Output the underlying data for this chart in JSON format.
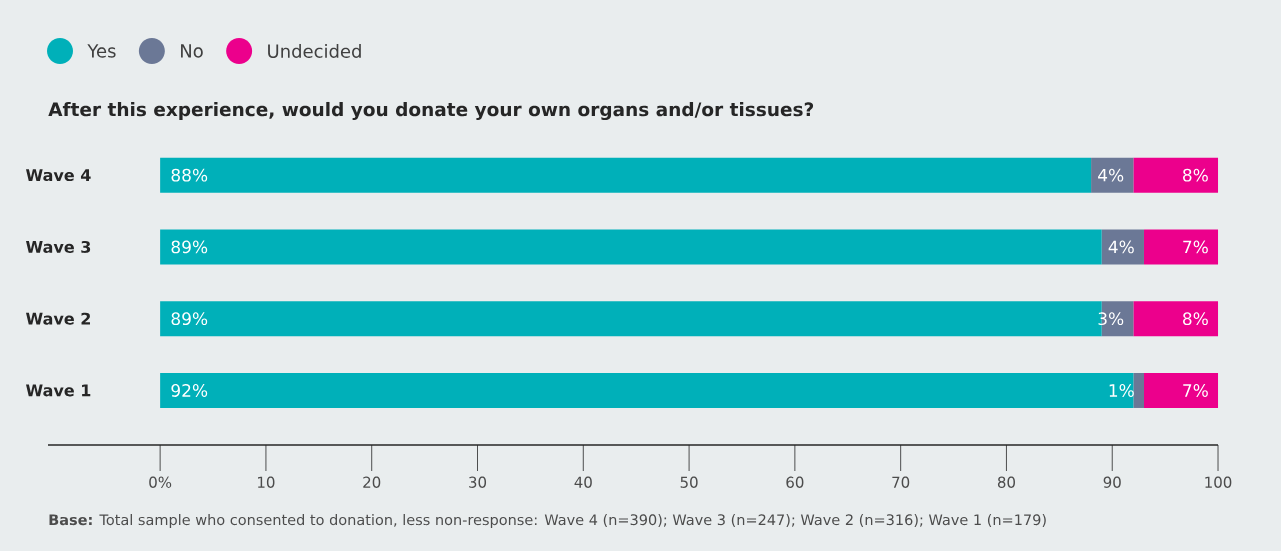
{
  "chart_data": {
    "type": "bar",
    "orientation": "horizontal",
    "stacked": true,
    "title": "After this experience, would you donate your own organs and/or tissues?",
    "categories": [
      "Wave 4",
      "Wave 3",
      "Wave 2",
      "Wave 1"
    ],
    "series": [
      {
        "name": "Yes",
        "color": "#00b0b9",
        "values": [
          88,
          89,
          89,
          92
        ],
        "value_labels": [
          "88%",
          "89%",
          "89%",
          "92%"
        ]
      },
      {
        "name": "No",
        "color": "#6b7896",
        "values": [
          4,
          4,
          3,
          1
        ],
        "value_labels": [
          "4%",
          "4%",
          "3%",
          "1%"
        ]
      },
      {
        "name": "Undecided",
        "color": "#ec008c",
        "values": [
          8,
          7,
          8,
          7
        ],
        "value_labels": [
          "8%",
          "7%",
          "8%",
          "7%"
        ]
      }
    ],
    "xlim": [
      -10.6,
      100
    ],
    "xticks": [
      {
        "value": 0,
        "label": "0%"
      },
      10,
      20,
      30,
      40,
      50,
      60,
      70,
      80,
      90,
      100
    ],
    "legend": "top left",
    "annotations": [
      "**Base:** Total sample who consented to donation, less non-response: Wave 4 (n=390); Wave 3 (n=247); Wave 2 (n=316); Wave 1 (n=179)"
    ]
  }
}
